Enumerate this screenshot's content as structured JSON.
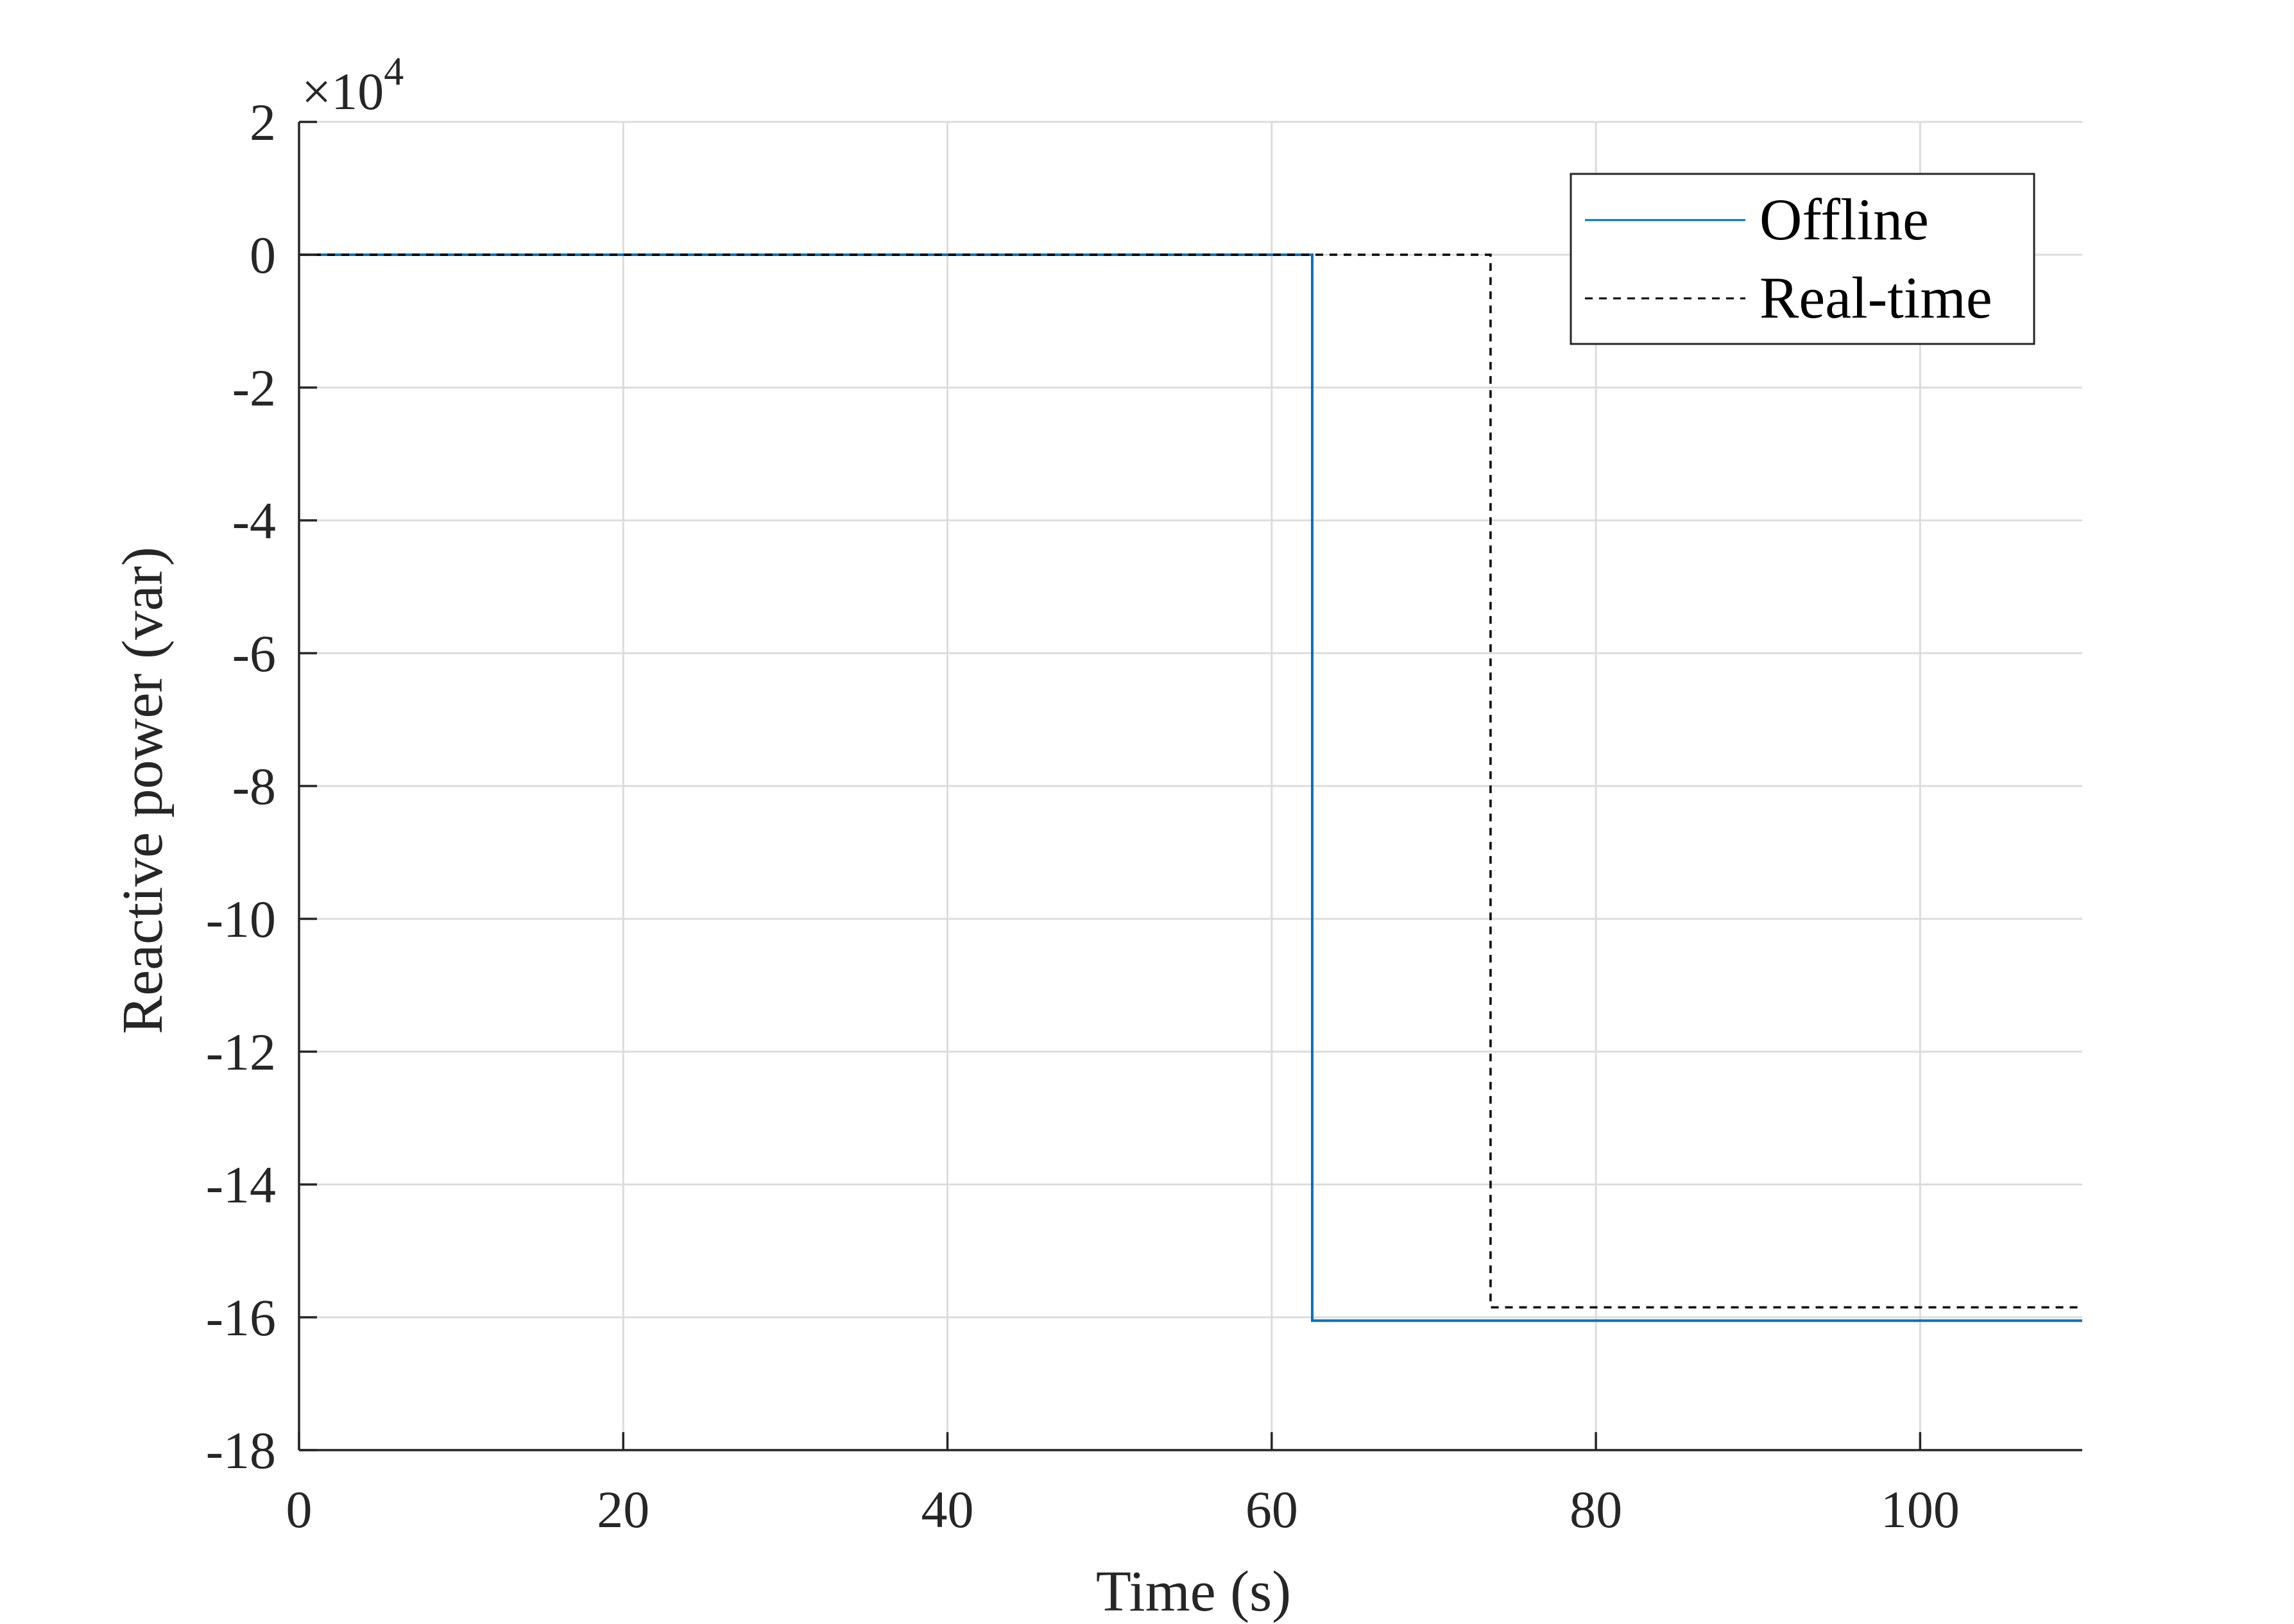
{
  "chart_data": {
    "type": "line",
    "xlabel": "Time (s)",
    "ylabel": "Reactive power (var)",
    "xlim": [
      0,
      110
    ],
    "ylim": [
      -18,
      2
    ],
    "y_multiplier": {
      "times": "×10",
      "exponent": "4"
    },
    "x_ticks": [
      0,
      20,
      40,
      60,
      80,
      100
    ],
    "x_tick_labels": [
      "0",
      "20",
      "40",
      "60",
      "80",
      "100"
    ],
    "y_ticks": [
      2,
      0,
      -2,
      -4,
      -6,
      -8,
      -10,
      -12,
      -14,
      -16,
      -18
    ],
    "y_tick_labels": [
      "2",
      "0",
      "-2",
      "-4",
      "-6",
      "-8",
      "-10",
      "-12",
      "-14",
      "-16",
      "-18"
    ],
    "grid": true,
    "legend_position": "top-right",
    "series": [
      {
        "name": "Offline",
        "style": "solid",
        "color": "#0072BD",
        "x": [
          0,
          62.5,
          62.5,
          110
        ],
        "y": [
          0,
          0,
          -16.05,
          -16.05
        ]
      },
      {
        "name": "Real-time",
        "style": "dashed",
        "color": "#000000",
        "x": [
          0,
          73.5,
          73.5,
          110
        ],
        "y": [
          0,
          0,
          -15.85,
          -15.85
        ]
      }
    ]
  }
}
